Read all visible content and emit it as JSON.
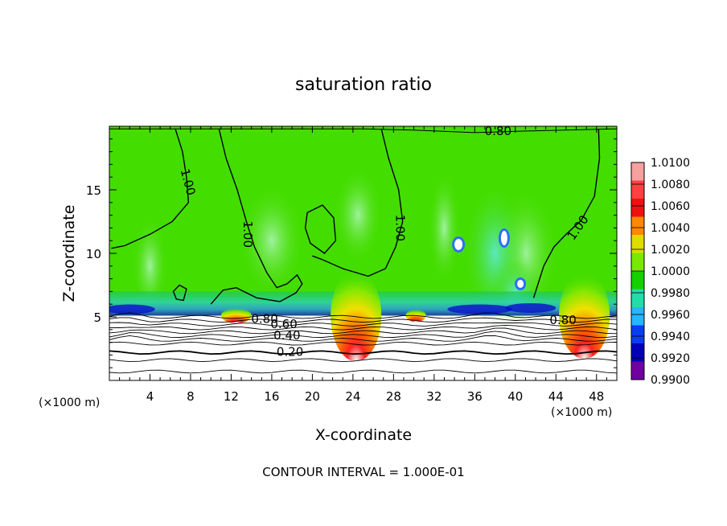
{
  "chart_data": {
    "type": "heatmap",
    "title": "saturation ratio",
    "xlabel": "X-coordinate",
    "ylabel": "Z-coordinate",
    "x_unit_left": "(×1000 m)",
    "x_unit_right": "(×1000 m)",
    "footer": "CONTOUR INTERVAL = 1.000E-01",
    "xlim": [
      0,
      50
    ],
    "ylim": [
      0,
      20
    ],
    "xticks": [
      4,
      8,
      12,
      16,
      20,
      24,
      28,
      32,
      36,
      40,
      44,
      48
    ],
    "yticks": [
      5,
      10,
      15
    ],
    "colorbar": {
      "levels": [
        "1.0100",
        "1.0080",
        "1.0060",
        "1.0040",
        "1.0020",
        "1.0000",
        "0.9980",
        "0.9960",
        "0.9940",
        "0.9920",
        "0.9900"
      ],
      "colors": [
        "#f6a0a0",
        "#ff4040",
        "#ee1111",
        "#ff8800",
        "#dddd00",
        "#7ae800",
        "#14d000",
        "#22ddaa",
        "#28b4ff",
        "#0a3cf0",
        "#0000b8",
        "#7000a0"
      ]
    },
    "contour_labels": [
      {
        "text": "1.00",
        "x": 7.7,
        "y": 15.6,
        "rot": 75
      },
      {
        "text": "1.00",
        "x": 13.6,
        "y": 11.5,
        "rot": 90
      },
      {
        "text": "1.00",
        "x": 28.6,
        "y": 12.0,
        "rot": 90
      },
      {
        "text": "1.00",
        "x": 46.2,
        "y": 12.0,
        "rot": -55
      },
      {
        "text": "0.80",
        "x": 38.3,
        "y": 19.6,
        "rot": 0
      },
      {
        "text": "0.80",
        "x": 15.3,
        "y": 4.8,
        "rot": 0
      },
      {
        "text": "0.60",
        "x": 17.2,
        "y": 4.4,
        "rot": 0
      },
      {
        "text": "0.40",
        "x": 17.5,
        "y": 3.5,
        "rot": 0
      },
      {
        "text": "0.20",
        "x": 17.8,
        "y": 2.2,
        "rot": 0
      },
      {
        "text": "0.80",
        "x": 44.7,
        "y": 4.7,
        "rot": 0
      }
    ],
    "warm_plumes": [
      {
        "x": 24.3,
        "width": 5,
        "height": 3.6
      },
      {
        "x": 46.8,
        "width": 5,
        "height": 3.4
      },
      {
        "x": 12.5,
        "width": 3,
        "height": 0.6
      },
      {
        "x": 30.2,
        "width": 2,
        "height": 0.5
      }
    ],
    "cloud_base_km": 5.1,
    "grid": false,
    "legend": "right"
  }
}
